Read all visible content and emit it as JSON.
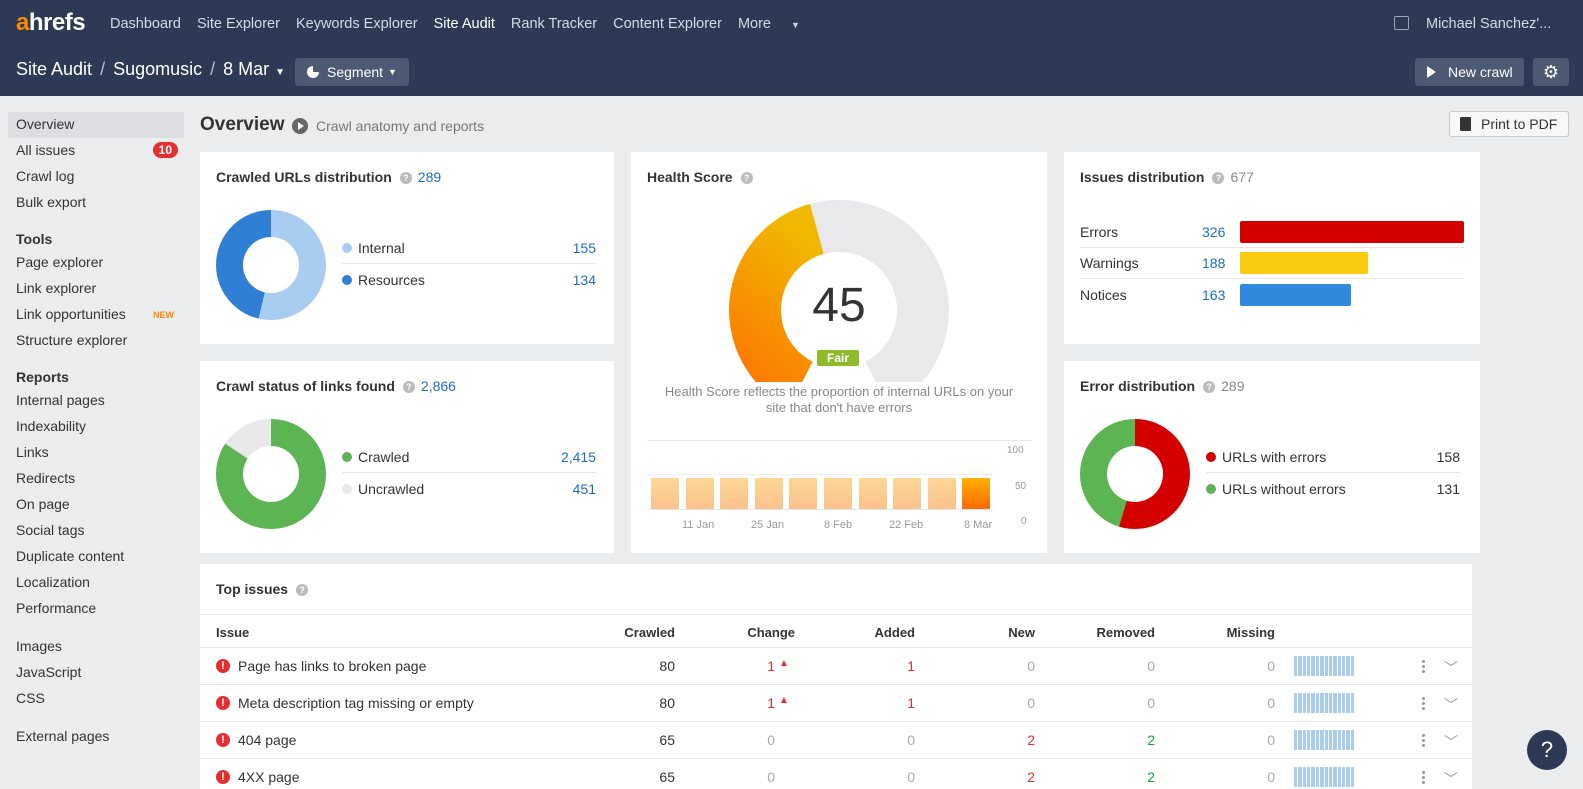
{
  "brand": {
    "logo_a": "a",
    "logo_rest": "hrefs",
    "accent": "#ff8800",
    "header_bg": "#2d3a55"
  },
  "nav": {
    "items": [
      "Dashboard",
      "Site Explorer",
      "Keywords Explorer",
      "Site Audit",
      "Rank Tracker",
      "Content Explorer"
    ],
    "more": "More",
    "active": "Site Audit",
    "user": "Michael Sanchez'..."
  },
  "breadcrumb": {
    "root": "Site Audit",
    "project": "Sugomusic",
    "date": "8 Mar",
    "segment": "Segment"
  },
  "actions": {
    "new_crawl": "New crawl",
    "print_pdf": "Print to PDF"
  },
  "sidebar": {
    "top": [
      {
        "label": "Overview",
        "selected": true
      },
      {
        "label": "All issues",
        "badge": "10"
      },
      {
        "label": "Crawl log"
      },
      {
        "label": "Bulk export"
      }
    ],
    "tools_head": "Tools",
    "tools": [
      {
        "label": "Page explorer"
      },
      {
        "label": "Link explorer"
      },
      {
        "label": "Link opportunities",
        "tag": "NEW"
      },
      {
        "label": "Structure explorer"
      }
    ],
    "reports_head": "Reports",
    "reports": [
      "Internal pages",
      "Indexability",
      "Links",
      "Redirects",
      "On page",
      "Social tags",
      "Duplicate content",
      "Localization",
      "Performance"
    ],
    "resources": [
      "Images",
      "JavaScript",
      "CSS"
    ],
    "external": [
      "External pages"
    ]
  },
  "overview": {
    "title": "Overview",
    "subtitle": "Crawl anatomy and reports"
  },
  "crawled_urls": {
    "title": "Crawled URLs distribution",
    "total": "289",
    "rows": [
      {
        "label": "Internal",
        "value": "155",
        "color": "#a9cdf0"
      },
      {
        "label": "Resources",
        "value": "134",
        "color": "#2f7fd6"
      }
    ]
  },
  "crawl_status": {
    "title": "Crawl status of links found",
    "total": "2,866",
    "rows": [
      {
        "label": "Crawled",
        "value": "2,415",
        "color": "#5cb553"
      },
      {
        "label": "Uncrawled",
        "value": "451",
        "color": "#e8e8e8"
      }
    ]
  },
  "health": {
    "title": "Health Score",
    "score": "45",
    "rating": "Fair",
    "description": "Health Score reflects the proportion of internal URLs on your site that don't have errors",
    "axis": [
      "100",
      "50",
      "0"
    ],
    "dates": [
      "11 Jan",
      "25 Jan",
      "8 Feb",
      "22 Feb",
      "8 Mar"
    ]
  },
  "issues_dist": {
    "title": "Issues distribution",
    "total": "677",
    "rows": [
      {
        "label": "Errors",
        "value": "326",
        "color": "#d40000"
      },
      {
        "label": "Warnings",
        "value": "188",
        "color": "#f9cc0f"
      },
      {
        "label": "Notices",
        "value": "163",
        "color": "#2f8ae0"
      }
    ]
  },
  "error_dist": {
    "title": "Error distribution",
    "total": "289",
    "rows": [
      {
        "label": "URLs with errors",
        "value": "158",
        "color": "#d40000"
      },
      {
        "label": "URLs without errors",
        "value": "131",
        "color": "#5cb553"
      }
    ]
  },
  "top_issues": {
    "title": "Top issues",
    "columns": [
      "Issue",
      "Crawled",
      "Change",
      "Added",
      "New",
      "Removed",
      "Missing"
    ],
    "rows": [
      {
        "issue": "Page has links to broken page",
        "crawled": "80",
        "change": "1",
        "added": "1",
        "new": "0",
        "removed": "0",
        "missing": "0"
      },
      {
        "issue": "Meta description tag missing or empty",
        "crawled": "80",
        "change": "1",
        "added": "1",
        "new": "0",
        "removed": "0",
        "missing": "0"
      },
      {
        "issue": "404 page",
        "crawled": "65",
        "change": "0",
        "added": "0",
        "new": "2",
        "removed": "2",
        "missing": "0"
      },
      {
        "issue": "4XX page",
        "crawled": "65",
        "change": "0",
        "added": "0",
        "new": "2",
        "removed": "2",
        "missing": "0"
      }
    ]
  },
  "chart_data": {
    "type": "bar",
    "categories": [
      "",
      "11 Jan",
      "",
      "25 Jan",
      "",
      "8 Feb",
      "",
      "22 Feb",
      "",
      "8 Mar"
    ],
    "values": [
      45,
      45,
      45,
      45,
      45,
      45,
      45,
      45,
      45,
      45
    ],
    "ylim": [
      0,
      100
    ],
    "yticks": [
      0,
      50,
      100
    ]
  }
}
